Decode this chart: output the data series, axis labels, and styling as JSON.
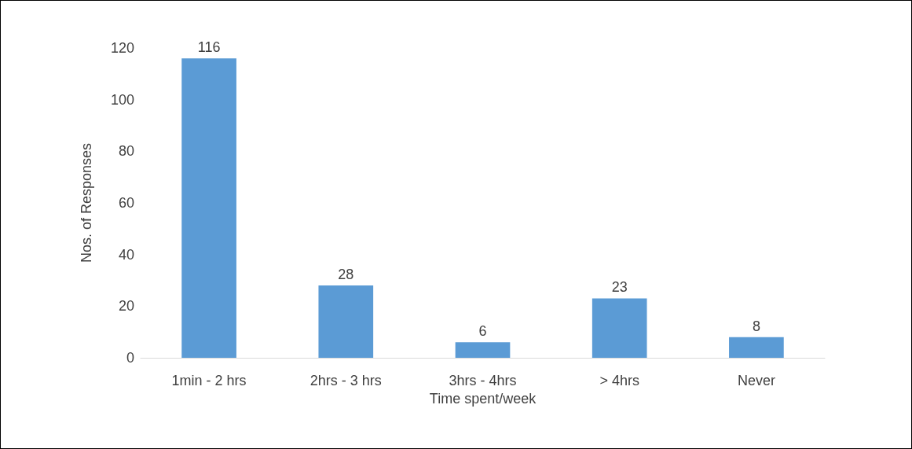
{
  "chart_data": {
    "type": "bar",
    "categories": [
      "1min - 2 hrs",
      "2hrs - 3 hrs",
      "3hrs - 4hrs",
      "> 4hrs",
      "Never"
    ],
    "values": [
      116,
      28,
      6,
      23,
      8
    ],
    "color": "#5b9bd5",
    "xlabel": "Time spent/week",
    "ylabel": "Nos. of Responses",
    "ylim": [
      0,
      120
    ],
    "yticks": [
      0,
      20,
      40,
      60,
      80,
      100,
      120
    ],
    "data_labels": true,
    "grid": false
  }
}
